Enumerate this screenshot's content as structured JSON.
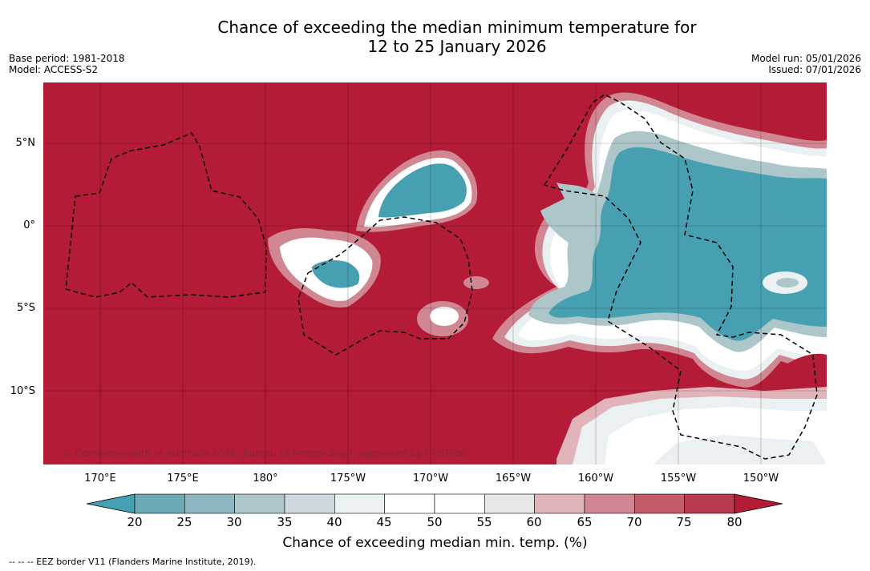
{
  "title_line1": "Chance of exceeding the median minimum temperature for",
  "title_line2": "12 to 25 January 2026",
  "meta": {
    "base_period": "Base period: 1981-2018",
    "model": "Model: ACCESS-S2",
    "model_run": "Model run: 05/01/2026",
    "issued": "Issued: 07/01/2026"
  },
  "map": {
    "copyright": "© Commonwealth of Australia 2026, Bureau of Meteorology, supported by COSPPac",
    "lat_labels": [
      "5°N",
      "0°",
      "5°S",
      "10°S"
    ],
    "lon_labels": [
      "170°E",
      "175°E",
      "180°",
      "175°W",
      "170°W",
      "165°W",
      "160°W",
      "155°W",
      "150°W"
    ],
    "colors": {
      "above_80": "#b31b36",
      "below_20": "#46a0b2",
      "neutral": "#ffffff"
    }
  },
  "colorbar": {
    "ticks": [
      "20",
      "25",
      "30",
      "35",
      "40",
      "45",
      "50",
      "55",
      "60",
      "65",
      "70",
      "75",
      "80"
    ],
    "colors": [
      "#46a0b2",
      "#6ba9b4",
      "#8db8c3",
      "#adc6ca",
      "#cdd9dc",
      "#ebf0f2",
      "#ffffff",
      "#ffffff",
      "#e9e6e6",
      "#dfb5b9",
      "#d18791",
      "#c55c6b",
      "#b83a4f",
      "#b31b36"
    ],
    "label": "Chance of exceeding median min. temp. (%)"
  },
  "footnote": "-- -- -- EEZ border V11 (Flanders Marine Institute, 2019)."
}
